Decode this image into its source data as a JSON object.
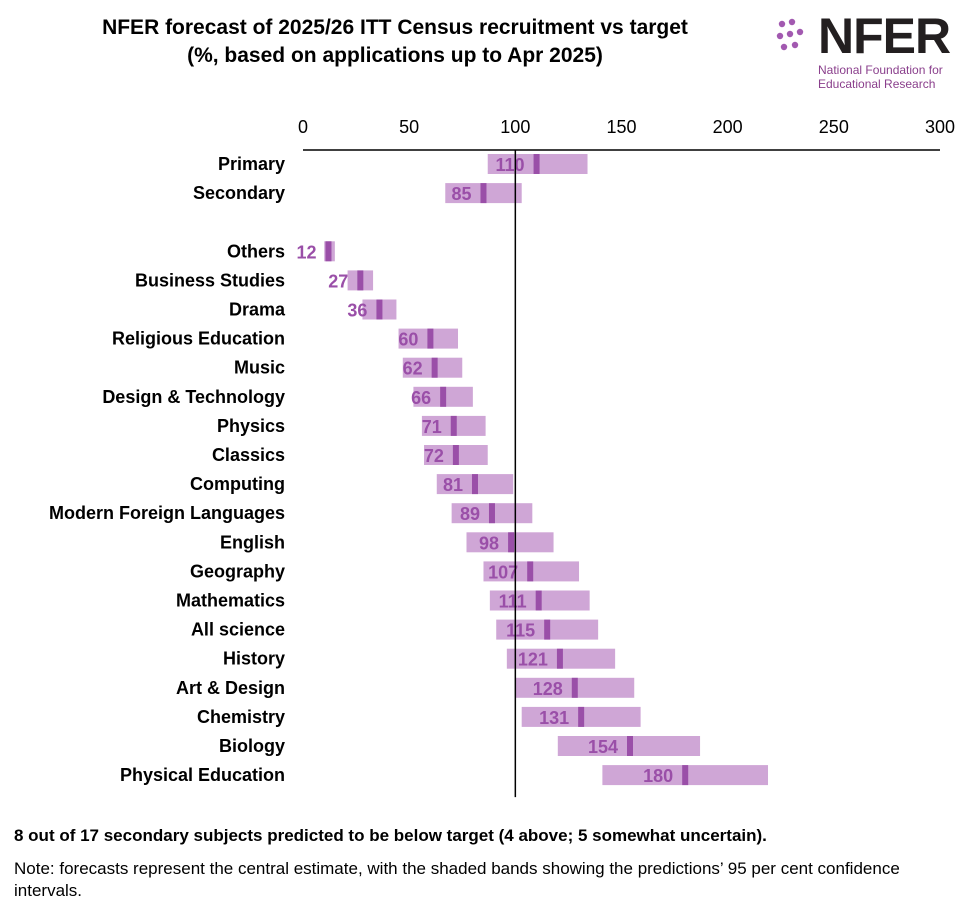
{
  "title": {
    "line1": "NFER forecast of 2025/26 ITT Census recruitment vs target",
    "line2": "(%, based on applications up to Apr 2025)"
  },
  "logo": {
    "word": "NFER",
    "subtitle_line1": "National Foundation for",
    "subtitle_line2": "Educational Research"
  },
  "colors": {
    "band": "#cfa6d6",
    "marker": "#9a4fa8",
    "label": "#9a4fa8",
    "target_line": "#000000"
  },
  "chart_data": {
    "type": "bar",
    "subtype": "range-with-central-estimate",
    "x_ticks": [
      0,
      50,
      100,
      150,
      200,
      250,
      300
    ],
    "xlim": [
      0,
      300
    ],
    "target": 100,
    "categories": [
      "Primary",
      "Secondary",
      "",
      "Others",
      "Business Studies",
      "Drama",
      "Religious Education",
      "Music",
      "Design & Technology",
      "Physics",
      "Classics",
      "Computing",
      "Modern Foreign Languages",
      "English",
      "Geography",
      "Mathematics",
      "All science",
      "History",
      "Art & Design",
      "Chemistry",
      "Biology",
      "Physical Education"
    ],
    "values": [
      110,
      85,
      null,
      12,
      27,
      36,
      60,
      62,
      66,
      71,
      72,
      81,
      89,
      98,
      107,
      111,
      115,
      121,
      128,
      131,
      154,
      180
    ],
    "lower": [
      87,
      67,
      null,
      10,
      21,
      28,
      45,
      47,
      52,
      56,
      57,
      63,
      70,
      77,
      85,
      88,
      91,
      96,
      100,
      103,
      120,
      141
    ],
    "upper": [
      134,
      103,
      null,
      15,
      33,
      44,
      73,
      75,
      80,
      86,
      87,
      99,
      108,
      118,
      130,
      135,
      139,
      147,
      156,
      159,
      187,
      219
    ]
  },
  "footer": {
    "summary": "8 out of 17 secondary subjects predicted to be below target (4 above; 5 somewhat uncertain).",
    "note": "Note: forecasts represent the central estimate, with the shaded bands showing the predictions’ 95 per cent confidence intervals."
  }
}
